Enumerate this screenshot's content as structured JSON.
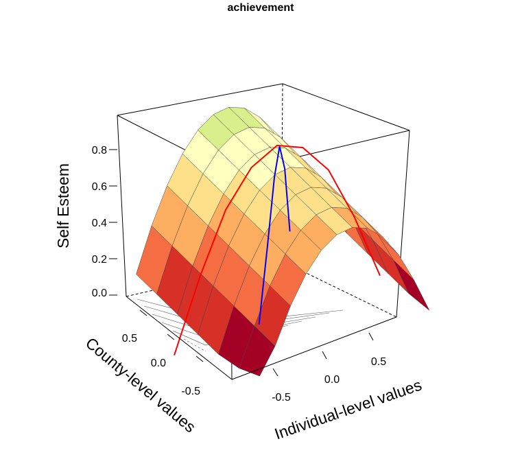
{
  "chart_data": {
    "type": "surface",
    "title": "achievement",
    "xlabel": "Individual-level values",
    "ylabel": "County-level values",
    "zlabel": "Self Esteem",
    "x_ticks": [
      "-0.5",
      "0.0",
      "0.5"
    ],
    "y_ticks": [
      "-0.5",
      "0.0",
      "0.5"
    ],
    "z_ticks": [
      "0.0",
      "0.2",
      "0.4",
      "0.6",
      "0.8"
    ],
    "xlim": [
      -1,
      1
    ],
    "ylim": [
      -1,
      1
    ],
    "zlim": [
      0,
      0.9
    ],
    "surface": {
      "description_model": "z = 0.4 - 0.45*x^2 + 0.12*(y-0.2)",
      "x_grid": [
        -0.85,
        -0.7,
        -0.55,
        -0.4,
        -0.25,
        -0.1,
        0.05,
        0.2,
        0.35,
        0.5,
        0.65,
        0.8
      ],
      "y_grid": [
        -0.8,
        -0.55,
        -0.3,
        -0.05,
        0.2,
        0.45,
        0.7
      ],
      "palette": [
        "#a50026",
        "#d73027",
        "#f46d43",
        "#fdae61",
        "#fee08b",
        "#ffffbf",
        "#d9ef8b"
      ]
    },
    "lines": [
      {
        "color": "#ff0000",
        "x": [
          -1.0,
          -0.75,
          -0.5,
          -0.25,
          0.0,
          0.25,
          0.5,
          0.75,
          1.0
        ],
        "z": [
          0.0,
          0.17,
          0.31,
          0.39,
          0.42,
          0.39,
          0.31,
          0.17,
          0.0
        ]
      },
      {
        "color": "#0000ff",
        "x": [
          -0.2,
          -0.12,
          -0.05,
          0.0,
          0.05,
          0.1
        ],
        "z": [
          0.0,
          0.18,
          0.35,
          0.42,
          0.36,
          0.2
        ]
      }
    ],
    "grid": false,
    "legend": "none"
  }
}
